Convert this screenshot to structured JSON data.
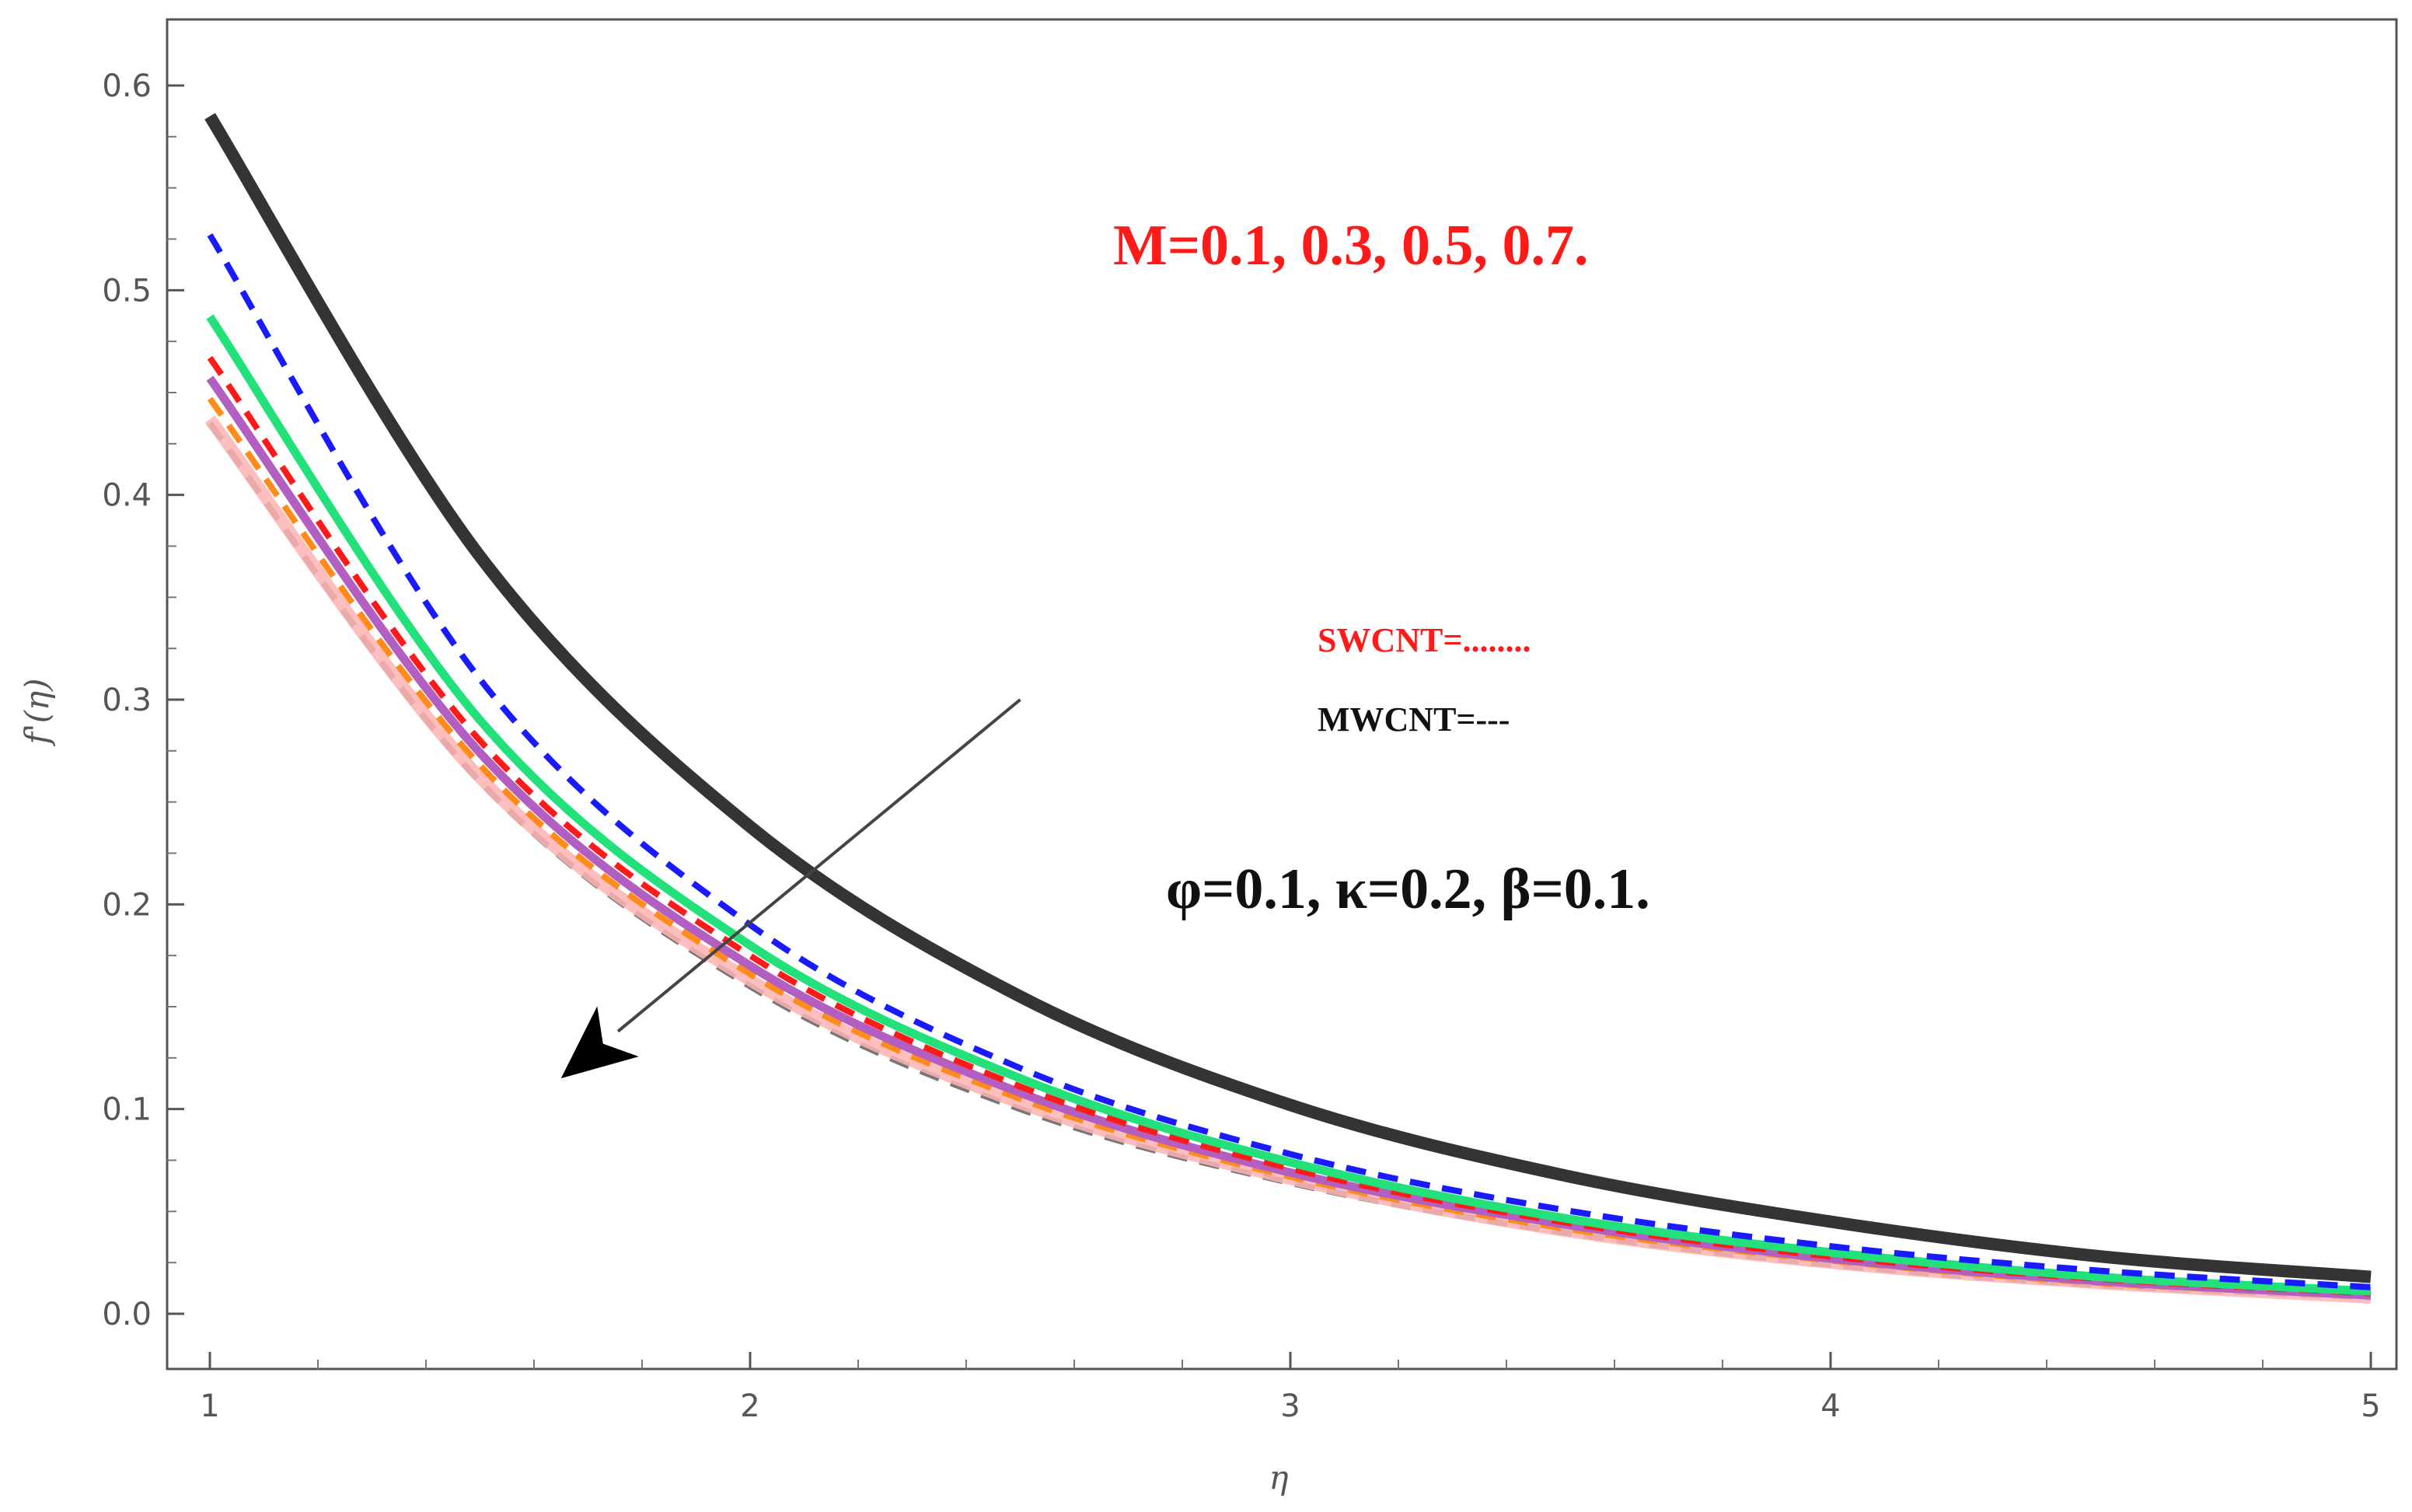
{
  "chart_data": {
    "type": "line",
    "title": "",
    "xlabel": "η",
    "ylabel": "f'(η)",
    "xlim": [
      1,
      5
    ],
    "ylim": [
      -0.025,
      0.6
    ],
    "x_ticks": [
      "1",
      "2",
      "3",
      "4",
      "5"
    ],
    "y_ticks": [
      "0.0",
      "0.1",
      "0.2",
      "0.3",
      "0.4",
      "0.5",
      "0.6"
    ],
    "x": [
      1.0,
      1.5,
      2.0,
      2.5,
      3.0,
      3.5,
      4.0,
      4.5,
      5.0
    ],
    "series": [
      {
        "color": "#111111",
        "style": "solid-thick",
        "values": [
          0.585,
          0.37,
          0.238,
          0.155,
          0.102,
          0.068,
          0.045,
          0.028,
          0.018
        ]
      },
      {
        "color": "#1a1aff",
        "style": "dashed",
        "values": [
          0.527,
          0.31,
          0.19,
          0.12,
          0.078,
          0.051,
          0.033,
          0.021,
          0.013
        ]
      },
      {
        "color": "#22e07a",
        "style": "solid",
        "values": [
          0.487,
          0.29,
          0.18,
          0.115,
          0.074,
          0.047,
          0.03,
          0.018,
          0.011
        ]
      },
      {
        "color": "#ff1a1a",
        "style": "dashed",
        "values": [
          0.467,
          0.28,
          0.175,
          0.111,
          0.071,
          0.045,
          0.028,
          0.017,
          0.01
        ]
      },
      {
        "color": "#b35fc2",
        "style": "solid",
        "values": [
          0.457,
          0.274,
          0.17,
          0.108,
          0.069,
          0.044,
          0.027,
          0.016,
          0.009
        ]
      },
      {
        "color": "#ff8c1a",
        "style": "dashed",
        "values": [
          0.447,
          0.268,
          0.166,
          0.105,
          0.067,
          0.042,
          0.026,
          0.015,
          0.009
        ]
      },
      {
        "color": "#ffb3b3",
        "style": "solid-thick",
        "values": [
          0.437,
          0.262,
          0.163,
          0.103,
          0.066,
          0.041,
          0.025,
          0.015,
          0.008
        ]
      },
      {
        "color": "#777777",
        "style": "dashed",
        "values": [
          0.435,
          0.26,
          0.16,
          0.1,
          0.064,
          0.04,
          0.024,
          0.014,
          0.008
        ]
      }
    ],
    "annotations": {
      "m_values": "M=0.1, 0.3, 0.5, 0.7.",
      "swcnt": "SWCNT=........",
      "mwcnt": "MWCNT=---",
      "params": "φ=0.1, κ=0.2, β=0.1."
    },
    "arrow": {
      "from": [
        2.5,
        0.3
      ],
      "to": [
        1.65,
        0.115
      ]
    },
    "grid": false
  }
}
